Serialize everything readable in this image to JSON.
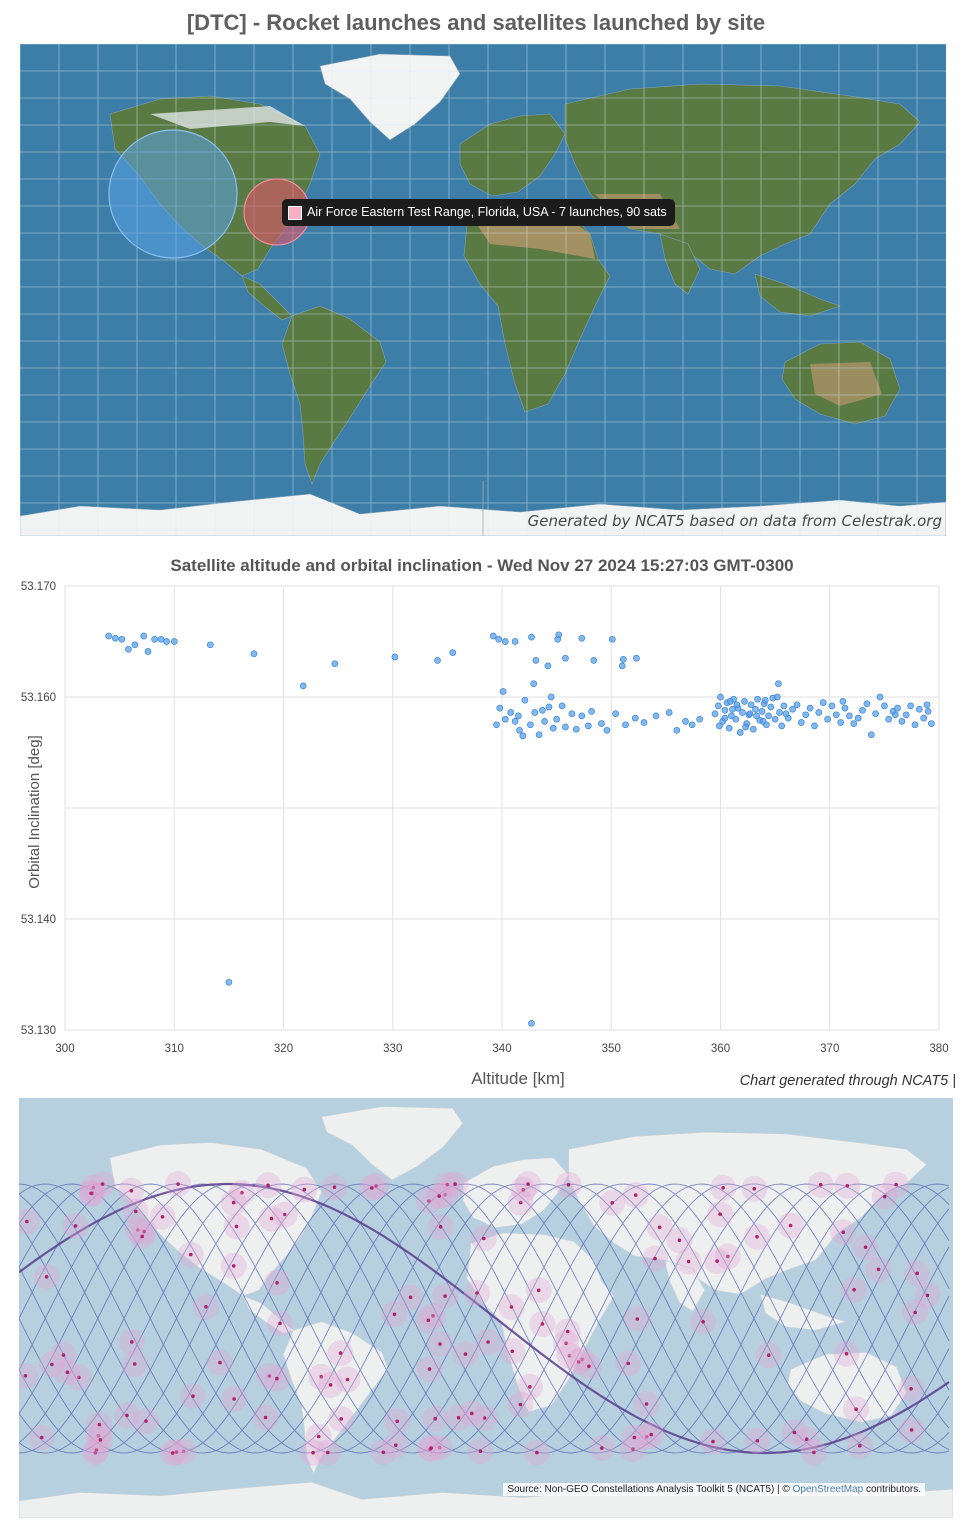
{
  "map1": {
    "title": "[DTC] - Rocket launches and satellites launched by site",
    "credit": "Generated by NCAT5 based on data from Celestrak.org",
    "tooltip": "Air Force Eastern Test Range, Florida, USA - 7 launches, 90 sats",
    "colors": {
      "ocean": "#3c7ea8",
      "land": "#5a7a44",
      "desert": "#b09468",
      "ice": "#f2f4f4",
      "west_coast_circle": "#5aa2e6",
      "eastern_range_circle": "#e0566a"
    }
  },
  "chart_data": {
    "type": "scatter",
    "title": "Satellite altitude and orbital inclination - Wed Nov 27 2024 15:27:03 GMT-0300",
    "xlabel": "Altitude [km]",
    "ylabel": "Orbital Inclination [deg]",
    "xlim": [
      300,
      380
    ],
    "ylim": [
      53.13,
      53.17
    ],
    "xticks": [
      "300",
      "310",
      "320",
      "330",
      "340",
      "350",
      "360",
      "370",
      "380"
    ],
    "yticks": [
      "53.130",
      "53.140",
      "53.150",
      "53.160",
      "53.170"
    ],
    "ytick_labels": [
      "53.130",
      "53.140",
      "",
      "53.160",
      "53.170"
    ],
    "grid": true,
    "point_color": "#5aa0e8",
    "credit": "Chart generated through NCAT5 |",
    "points": [
      [
        304.0,
        53.1655
      ],
      [
        304.6,
        53.1653
      ],
      [
        305.2,
        53.1652
      ],
      [
        305.8,
        53.1643
      ],
      [
        306.4,
        53.1647
      ],
      [
        307.2,
        53.1655
      ],
      [
        307.6,
        53.1641
      ],
      [
        308.2,
        53.1652
      ],
      [
        308.8,
        53.1652
      ],
      [
        309.3,
        53.165
      ],
      [
        310.0,
        53.165
      ],
      [
        313.3,
        53.1647
      ],
      [
        317.3,
        53.1639
      ],
      [
        321.8,
        53.161
      ],
      [
        324.7,
        53.163
      ],
      [
        330.2,
        53.1636
      ],
      [
        334.1,
        53.1633
      ],
      [
        335.5,
        53.164
      ],
      [
        339.2,
        53.1655
      ],
      [
        339.7,
        53.1652
      ],
      [
        340.3,
        53.165
      ],
      [
        341.2,
        53.165
      ],
      [
        342.7,
        53.1654
      ],
      [
        345.2,
        53.1656
      ],
      [
        347.3,
        53.1653
      ],
      [
        350.1,
        53.1652
      ],
      [
        345.1,
        53.1652
      ],
      [
        343.1,
        53.1633
      ],
      [
        344.2,
        53.1628
      ],
      [
        345.8,
        53.1635
      ],
      [
        348.4,
        53.1633
      ],
      [
        351.1,
        53.1634
      ],
      [
        352.3,
        53.1635
      ],
      [
        351.0,
        53.1628
      ],
      [
        342.9,
        53.1612
      ],
      [
        340.1,
        53.1605
      ],
      [
        339.5,
        53.1575
      ],
      [
        340.3,
        53.158
      ],
      [
        340.8,
        53.1586
      ],
      [
        341.2,
        53.1578
      ],
      [
        341.5,
        53.1583
      ],
      [
        341.9,
        53.1565
      ],
      [
        342.6,
        53.1575
      ],
      [
        343.0,
        53.1586
      ],
      [
        343.4,
        53.1566
      ],
      [
        343.9,
        53.1578
      ],
      [
        344.3,
        53.1591
      ],
      [
        344.7,
        53.1572
      ],
      [
        345.0,
        53.158
      ],
      [
        345.5,
        53.1592
      ],
      [
        345.8,
        53.1573
      ],
      [
        346.4,
        53.1585
      ],
      [
        346.8,
        53.1571
      ],
      [
        347.3,
        53.1583
      ],
      [
        348.2,
        53.1587
      ],
      [
        349.1,
        53.1576
      ],
      [
        349.6,
        53.157
      ],
      [
        350.4,
        53.1585
      ],
      [
        351.3,
        53.1575
      ],
      [
        352.2,
        53.1581
      ],
      [
        353.0,
        53.1577
      ],
      [
        354.1,
        53.1583
      ],
      [
        355.3,
        53.1586
      ],
      [
        356.0,
        53.157
      ],
      [
        356.8,
        53.1578
      ],
      [
        357.4,
        53.1575
      ],
      [
        358.1,
        53.158
      ],
      [
        342.1,
        53.1597
      ],
      [
        344.5,
        53.16
      ],
      [
        339.8,
        53.159
      ],
      [
        347.9,
        53.1574
      ],
      [
        341.6,
        53.157
      ],
      [
        343.7,
        53.1588
      ],
      [
        359.5,
        53.1585
      ],
      [
        359.8,
        53.1592
      ],
      [
        360.0,
        53.16
      ],
      [
        360.2,
        53.1578
      ],
      [
        360.4,
        53.1588
      ],
      [
        360.6,
        53.1595
      ],
      [
        360.8,
        53.1572
      ],
      [
        361.0,
        53.1583
      ],
      [
        361.2,
        53.1598
      ],
      [
        361.4,
        53.158
      ],
      [
        361.6,
        53.159
      ],
      [
        361.8,
        53.1568
      ],
      [
        362.0,
        53.1586
      ],
      [
        362.2,
        53.1596
      ],
      [
        362.4,
        53.1576
      ],
      [
        362.6,
        53.1584
      ],
      [
        362.8,
        53.1593
      ],
      [
        363.0,
        53.1571
      ],
      [
        363.2,
        53.1589
      ],
      [
        363.4,
        53.1598
      ],
      [
        363.6,
        53.1579
      ],
      [
        363.8,
        53.1587
      ],
      [
        364.0,
        53.1594
      ],
      [
        364.2,
        53.1575
      ],
      [
        364.4,
        53.1583
      ],
      [
        364.6,
        53.1591
      ],
      [
        364.8,
        53.1599
      ],
      [
        365.0,
        53.158
      ],
      [
        365.2,
        53.16
      ],
      [
        365.4,
        53.1586
      ],
      [
        365.6,
        53.1574
      ],
      [
        365.8,
        53.1592
      ],
      [
        366.2,
        53.1581
      ],
      [
        366.6,
        53.1589
      ],
      [
        367.0,
        53.1593
      ],
      [
        367.4,
        53.1577
      ],
      [
        367.8,
        53.1584
      ],
      [
        368.2,
        53.159
      ],
      [
        368.6,
        53.1574
      ],
      [
        369.0,
        53.1586
      ],
      [
        369.4,
        53.1595
      ],
      [
        369.8,
        53.158
      ],
      [
        370.2,
        53.1592
      ],
      [
        370.6,
        53.1584
      ],
      [
        371.0,
        53.1577
      ],
      [
        371.4,
        53.159
      ],
      [
        371.8,
        53.1583
      ],
      [
        372.2,
        53.1576
      ],
      [
        372.6,
        53.1581
      ],
      [
        373.0,
        53.1588
      ],
      [
        373.4,
        53.1594
      ],
      [
        373.8,
        53.1566
      ],
      [
        374.2,
        53.1585
      ],
      [
        374.6,
        53.16
      ],
      [
        375.0,
        53.1592
      ],
      [
        375.4,
        53.158
      ],
      [
        375.8,
        53.1587
      ],
      [
        376.2,
        53.159
      ],
      [
        376.6,
        53.1578
      ],
      [
        377.0,
        53.1584
      ],
      [
        377.4,
        53.1592
      ],
      [
        377.8,
        53.1575
      ],
      [
        378.2,
        53.1589
      ],
      [
        378.6,
        53.1581
      ],
      [
        379.0,
        53.1587
      ],
      [
        379.3,
        53.1576
      ],
      [
        365.3,
        53.1612
      ],
      [
        360.4,
        53.1581
      ],
      [
        361.5,
        53.1593
      ],
      [
        362.7,
        53.1585
      ],
      [
        363.9,
        53.1578
      ],
      [
        359.9,
        53.1574
      ],
      [
        361.1,
        53.1589
      ],
      [
        362.3,
        53.1573
      ],
      [
        364.1,
        53.1597
      ],
      [
        363.3,
        53.1583
      ],
      [
        360.9,
        53.1596
      ],
      [
        366.0,
        53.1585
      ],
      [
        371.2,
        53.1596
      ],
      [
        376.0,
        53.1584
      ],
      [
        378.9,
        53.1593
      ],
      [
        315.0,
        53.1343
      ],
      [
        342.7,
        53.1306
      ]
    ]
  },
  "map2": {
    "credit_prefix": "Source: Non-GEO Constellations Analysis Toolkit 5 (NCAT5) | © ",
    "credit_link": "OpenStreetMap",
    "credit_suffix": " contributors.",
    "colors": {
      "ocean": "#b7d0df",
      "land": "#eef0f0",
      "track": "#4e5fb0",
      "footprint": "#e0a7d4",
      "satellite": "#b0226a"
    }
  }
}
